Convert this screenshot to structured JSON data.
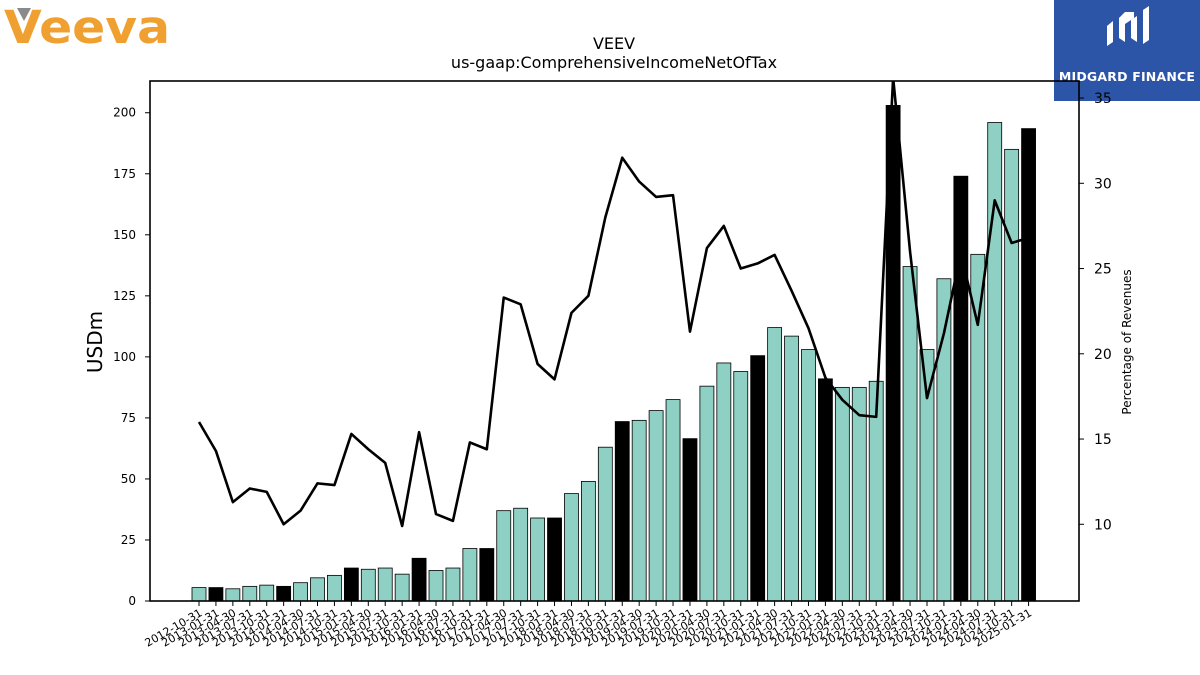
{
  "logos": {
    "company_logo_text": "Veeva",
    "brand_text": "MIDGARD FINANCE"
  },
  "colors": {
    "bar_default": "#8ed0c4",
    "bar_highlight": "#000000",
    "line": "#000000",
    "veeva_orange": "#f0a030",
    "midgard_blue": "#2c55a8"
  },
  "chart_data": {
    "type": "bar",
    "title": "VEEV",
    "subtitle": "us-gaap:ComprehensiveIncomeNetOfTax",
    "ylabel": "USDm",
    "y2label": "Percentage of Revenues",
    "ylim": [
      0,
      213
    ],
    "y2lim": [
      5.5,
      36.0
    ],
    "yticks": [
      0,
      25,
      50,
      75,
      100,
      125,
      150,
      175,
      200
    ],
    "y2ticks": [
      10,
      15,
      20,
      25,
      30,
      35
    ],
    "y2ticks_shown": [
      "10",
      "15",
      "20",
      "25",
      "30",
      "35"
    ],
    "grid": false,
    "categories": [
      "2012-10-31",
      "2013-01-31",
      "2013-04-30",
      "2013-07-31",
      "2013-10-31",
      "2014-01-31",
      "2014-04-30",
      "2014-07-31",
      "2014-10-31",
      "2015-01-31",
      "2015-04-30",
      "2015-07-31",
      "2015-10-31",
      "2016-01-31",
      "2016-04-30",
      "2016-07-31",
      "2016-10-31",
      "2017-01-31",
      "2017-04-30",
      "2017-07-31",
      "2017-10-31",
      "2018-01-31",
      "2018-04-30",
      "2018-07-31",
      "2018-10-31",
      "2019-01-31",
      "2019-04-30",
      "2019-07-31",
      "2019-10-31",
      "2020-01-31",
      "2020-04-30",
      "2020-07-31",
      "2020-10-31",
      "2021-01-31",
      "2021-04-30",
      "2021-07-31",
      "2021-10-31",
      "2022-01-31",
      "2022-04-30",
      "2022-07-31",
      "2022-10-31",
      "2023-01-31",
      "2023-04-30",
      "2023-07-31",
      "2023-10-31",
      "2024-01-31",
      "2024-04-30",
      "2024-07-31",
      "2024-10-31",
      "2025-01-31"
    ],
    "series": [
      {
        "kind": "bar",
        "axis": "left",
        "values": [
          5.5,
          5.5,
          5.0,
          6.0,
          6.5,
          6.0,
          7.5,
          9.5,
          10.5,
          13.5,
          13.0,
          13.5,
          11.0,
          17.5,
          12.5,
          13.5,
          21.5,
          21.5,
          37.0,
          38.0,
          34.0,
          34.0,
          44.0,
          49.0,
          63.0,
          73.5,
          74.0,
          78.0,
          82.5,
          66.5,
          88.0,
          97.5,
          94.0,
          100.5,
          112.0,
          108.5,
          103.0,
          91.0,
          87.5,
          87.5,
          90.0,
          203.0,
          137.0,
          103.0,
          132.0,
          174.0,
          142.0,
          196.0,
          185.0,
          193.5
        ],
        "highlight": [
          false,
          true,
          false,
          false,
          false,
          true,
          false,
          false,
          false,
          true,
          false,
          false,
          false,
          true,
          false,
          false,
          false,
          true,
          false,
          false,
          false,
          true,
          false,
          false,
          false,
          true,
          false,
          false,
          false,
          true,
          false,
          false,
          false,
          true,
          false,
          false,
          false,
          true,
          false,
          false,
          false,
          true,
          false,
          false,
          false,
          true,
          false,
          false,
          false,
          true
        ]
      },
      {
        "kind": "line",
        "axis": "right",
        "values": [
          16.0,
          14.3,
          11.3,
          12.1,
          11.9,
          10.0,
          10.8,
          12.4,
          12.3,
          15.3,
          14.4,
          13.6,
          9.9,
          15.4,
          10.6,
          10.2,
          14.8,
          14.4,
          23.3,
          22.9,
          19.4,
          18.5,
          22.4,
          23.4,
          28.0,
          31.5,
          30.1,
          29.2,
          29.3,
          21.3,
          26.2,
          27.5,
          25.0,
          25.3,
          25.8,
          23.7,
          21.5,
          18.6,
          17.3,
          16.4,
          16.3,
          36.2,
          26.0,
          17.4,
          21.2,
          25.9,
          21.7,
          29.0,
          26.5,
          26.8
        ]
      }
    ]
  }
}
